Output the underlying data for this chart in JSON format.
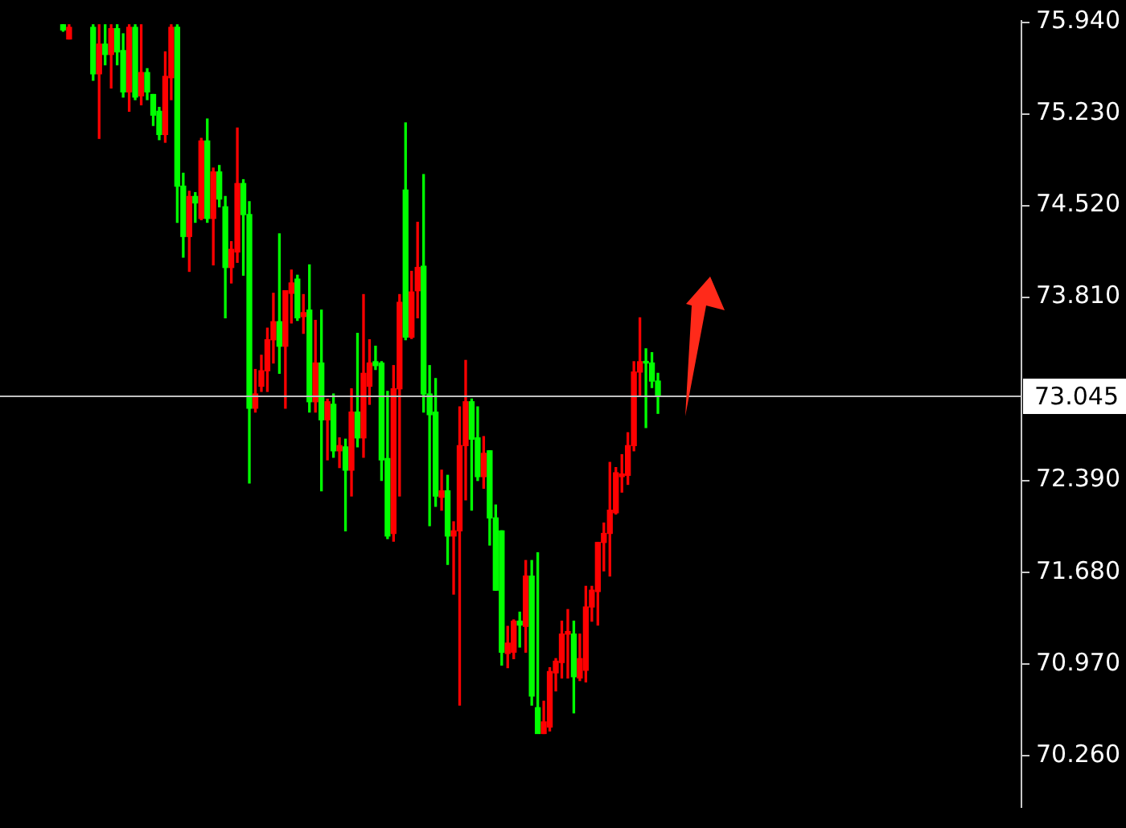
{
  "chart_data": {
    "type": "candlestick",
    "categories": [
      null,
      null,
      null,
      null,
      null,
      null,
      null,
      null,
      null,
      null,
      null,
      null,
      null,
      null,
      null,
      null,
      null,
      null,
      null,
      null,
      null,
      null,
      null,
      null,
      null,
      null,
      null,
      null,
      null,
      null,
      null,
      null,
      null,
      null,
      null,
      null,
      null,
      null,
      null,
      null,
      null,
      null,
      null,
      null,
      null,
      null,
      null,
      null,
      null,
      null,
      null,
      null,
      null,
      null,
      null,
      null,
      null,
      null,
      null,
      null,
      null,
      null,
      null,
      null,
      null,
      null,
      null,
      null,
      null,
      null,
      null,
      null,
      null,
      null,
      null,
      null,
      null,
      null,
      null,
      null,
      null,
      null,
      null,
      null,
      null,
      null,
      null,
      null,
      null,
      null,
      null,
      null,
      null,
      null,
      null,
      null,
      null,
      null,
      null,
      null,
      null,
      null,
      null,
      null,
      null,
      null,
      null,
      null,
      null,
      null,
      null,
      null,
      null,
      null,
      null,
      null,
      null,
      null,
      null,
      null,
      null,
      null,
      null,
      null,
      null,
      null,
      null,
      null,
      null,
      null,
      null,
      null,
      null,
      null,
      null,
      null,
      null,
      null,
      null,
      null,
      null,
      null,
      null,
      null,
      null,
      null,
      null,
      null,
      null,
      null,
      null,
      null,
      null,
      null,
      null,
      null,
      null,
      null,
      null,
      null,
      null,
      null,
      null,
      null,
      null,
      null,
      null,
      null,
      null,
      null
    ],
    "ohlc": [
      null,
      null,
      null,
      null,
      null,
      null,
      null,
      null,
      null,
      null,
      [
        75.92,
        75.92,
        75.87,
        75.88
      ],
      [
        75.81,
        75.92,
        75.81,
        75.9
      ],
      null,
      null,
      null,
      [
        75.9,
        75.92,
        75.49,
        75.54
      ],
      [
        75.54,
        75.92,
        75.04,
        75.77
      ],
      [
        75.77,
        75.92,
        75.61,
        75.69
      ],
      [
        75.69,
        75.92,
        75.43,
        75.89
      ],
      [
        75.89,
        75.92,
        75.61,
        75.71
      ],
      [
        75.72,
        75.85,
        75.36,
        75.4
      ],
      [
        75.4,
        75.92,
        75.25,
        75.9
      ],
      [
        75.9,
        75.92,
        75.34,
        75.36
      ],
      [
        75.37,
        75.92,
        75.3,
        75.55
      ],
      [
        75.55,
        75.58,
        75.34,
        75.4
      ],
      [
        75.38,
        75.38,
        75.14,
        75.22
      ],
      [
        75.25,
        75.28,
        75.03,
        75.07
      ],
      [
        75.07,
        75.71,
        75.01,
        75.52
      ],
      [
        75.51,
        75.92,
        75.34,
        75.9
      ],
      [
        75.9,
        75.92,
        74.39,
        74.67
      ],
      [
        74.67,
        74.77,
        74.12,
        74.28
      ],
      [
        74.28,
        74.63,
        74.01,
        74.59
      ],
      [
        74.59,
        74.62,
        74.39,
        74.54
      ],
      [
        74.42,
        75.04,
        74.41,
        75.02
      ],
      [
        75.02,
        75.19,
        74.39,
        74.42
      ],
      [
        74.42,
        74.81,
        74.06,
        74.78
      ],
      [
        74.78,
        74.83,
        74.51,
        74.57
      ],
      [
        74.51,
        74.59,
        73.65,
        74.04
      ],
      [
        74.04,
        74.24,
        73.92,
        74.18
      ],
      [
        74.16,
        75.12,
        74.08,
        74.69
      ],
      [
        74.69,
        74.72,
        73.98,
        74.45
      ],
      [
        74.45,
        74.55,
        72.37,
        72.95
      ],
      [
        72.95,
        73.25,
        72.92,
        73.06
      ],
      [
        73.12,
        73.36,
        73.08,
        73.24
      ],
      [
        73.24,
        73.57,
        73.08,
        73.48
      ],
      [
        73.48,
        73.84,
        73.3,
        73.62
      ],
      [
        73.62,
        74.3,
        73.22,
        73.43
      ],
      [
        73.43,
        73.86,
        72.95,
        73.86
      ],
      [
        73.84,
        74.02,
        73.61,
        73.92
      ],
      [
        73.95,
        73.98,
        73.63,
        73.65
      ],
      [
        73.66,
        73.83,
        73.53,
        73.69
      ],
      [
        73.71,
        74.06,
        72.92,
        73.0
      ],
      [
        73.0,
        73.63,
        72.92,
        73.3
      ],
      [
        73.3,
        73.71,
        72.31,
        72.86
      ],
      [
        72.86,
        73.02,
        72.55,
        73.0
      ],
      [
        72.98,
        73.06,
        72.57,
        72.62
      ],
      [
        72.62,
        72.72,
        72.49,
        72.66
      ],
      [
        72.65,
        72.71,
        72.0,
        72.47
      ],
      [
        72.47,
        73.1,
        72.27,
        72.92
      ],
      [
        72.92,
        73.53,
        72.65,
        72.72
      ],
      [
        72.72,
        73.83,
        72.57,
        73.22
      ],
      [
        73.12,
        73.48,
        72.98,
        73.3
      ],
      [
        73.31,
        73.43,
        73.25,
        73.28
      ],
      [
        73.3,
        73.31,
        72.39,
        72.55
      ],
      [
        72.56,
        73.08,
        71.94,
        71.96
      ],
      [
        71.98,
        73.28,
        71.92,
        73.1
      ],
      [
        73.1,
        73.83,
        72.27,
        73.77
      ],
      [
        74.64,
        75.16,
        73.48,
        73.5
      ],
      [
        73.5,
        74.01,
        73.49,
        73.85
      ],
      [
        73.86,
        74.39,
        73.65,
        74.04
      ],
      [
        74.05,
        74.76,
        72.92,
        73.06
      ],
      [
        73.06,
        73.28,
        72.04,
        72.9
      ],
      [
        72.92,
        73.18,
        72.19,
        72.27
      ],
      [
        72.26,
        72.47,
        72.16,
        72.31
      ],
      [
        72.31,
        72.43,
        71.74,
        71.96
      ],
      [
        71.96,
        72.07,
        71.51,
        72.0
      ],
      [
        72.0,
        72.96,
        70.65,
        72.66
      ],
      [
        72.66,
        73.32,
        72.24,
        73.0
      ],
      [
        73.0,
        73.02,
        72.16,
        72.71
      ],
      [
        72.72,
        72.96,
        72.39,
        72.42
      ],
      [
        72.42,
        72.73,
        72.33,
        72.6
      ],
      [
        72.62,
        72.62,
        71.89,
        72.1
      ],
      [
        72.1,
        72.2,
        71.54,
        71.54
      ],
      [
        72.0,
        72.0,
        70.96,
        71.06
      ],
      [
        71.05,
        71.26,
        70.94,
        71.13
      ],
      [
        71.06,
        71.31,
        71.01,
        71.3
      ],
      [
        71.3,
        71.37,
        71.1,
        71.27
      ],
      [
        71.26,
        71.77,
        71.06,
        71.65
      ],
      [
        71.65,
        71.77,
        70.65,
        70.72
      ],
      [
        70.63,
        71.83,
        70.43,
        70.43
      ],
      [
        70.43,
        70.68,
        70.43,
        70.52
      ],
      [
        70.48,
        70.94,
        70.45,
        70.91
      ],
      [
        70.9,
        71.01,
        70.76,
        70.99
      ],
      [
        70.98,
        71.3,
        70.86,
        71.2
      ],
      [
        71.2,
        71.39,
        70.86,
        71.22
      ],
      [
        71.2,
        71.3,
        70.59,
        70.87
      ],
      [
        70.86,
        71.2,
        70.84,
        71.01
      ],
      [
        70.92,
        71.57,
        70.83,
        71.41
      ],
      [
        71.41,
        71.57,
        71.3,
        71.54
      ],
      [
        71.53,
        71.91,
        71.27,
        71.91
      ],
      [
        71.91,
        72.06,
        71.69,
        71.98
      ],
      [
        71.98,
        72.53,
        71.65,
        72.16
      ],
      [
        72.14,
        72.49,
        72.13,
        72.45
      ],
      [
        72.42,
        72.59,
        72.3,
        72.44
      ],
      [
        72.43,
        72.76,
        72.36,
        72.66
      ],
      [
        72.66,
        73.31,
        72.62,
        73.23
      ],
      [
        73.23,
        73.65,
        73.04,
        73.31
      ],
      [
        73.31,
        73.41,
        72.8,
        73.3
      ],
      [
        73.3,
        73.38,
        73.11,
        73.16
      ],
      [
        73.16,
        73.22,
        72.91,
        73.05
      ],
      null,
      null,
      null,
      null,
      null,
      null,
      null,
      null,
      null,
      null,
      null,
      null,
      null,
      null,
      null,
      null,
      null,
      null,
      null,
      null,
      null,
      null,
      null,
      null,
      null,
      null,
      null,
      null,
      null,
      null,
      null,
      null,
      null,
      null,
      null,
      null,
      null,
      null,
      null,
      null,
      null,
      null,
      null,
      null,
      null,
      null,
      null,
      null,
      null,
      null,
      null,
      null,
      null,
      null,
      null,
      null,
      null,
      null,
      null,
      null
    ],
    "colors": [
      null,
      null,
      null,
      null,
      null,
      null,
      null,
      null,
      null,
      null,
      "#00ff00",
      "#ff0000",
      null,
      null,
      null,
      "#00ff00",
      "#ff0000",
      "#00ff00",
      "#ff0000",
      "#00ff00",
      "#00ff00",
      "#ff0000",
      "#00ff00",
      "#ff0000",
      "#00ff00",
      "#00ff00",
      "#00ff00",
      "#ff0000",
      "#ff0000",
      "#00ff00",
      "#00ff00",
      "#ff0000",
      "#00ff00",
      "#ff0000",
      "#00ff00",
      "#ff0000",
      "#00ff00",
      "#00ff00",
      "#ff0000",
      "#ff0000",
      "#00ff00",
      "#00ff00",
      "#ff0000",
      "#ff0000",
      "#ff0000",
      "#ff0000",
      "#00ff00",
      "#ff0000",
      "#ff0000",
      "#00ff00",
      "#ff0000",
      "#00ff00",
      "#ff0000",
      "#00ff00",
      "#ff0000",
      "#00ff00",
      "#ff0000",
      "#00ff00",
      "#ff0000",
      "#00ff00",
      "#ff0000",
      "#ff0000",
      "#00ff00",
      "#00ff00",
      "#00ff00",
      "#ff0000",
      "#ff0000",
      "#00ff00",
      "#ff0000",
      "#ff0000",
      "#00ff00",
      "#00ff00",
      "#00ff00",
      "#ff0000",
      "#00ff00",
      "#ff0000",
      "#ff0000",
      "#ff0000",
      "#00ff00",
      "#00ff00",
      "#ff0000",
      "#00ff00",
      "#00ff00",
      "#00ff00",
      "#ff0000",
      "#ff0000",
      "#00ff00",
      "#ff0000",
      "#00ff00",
      "#00ff00",
      "#ff0000",
      "#ff0000",
      "#ff0000",
      "#ff0000",
      "#ff0000",
      "#00ff00",
      "#ff0000",
      "#ff0000",
      "#ff0000",
      "#ff0000",
      "#ff0000",
      "#ff0000",
      "#ff0000",
      "#ff0000",
      "#ff0000",
      "#ff0000",
      "#ff0000",
      "#00ff00",
      "#00ff00",
      "#00ff00",
      null,
      null,
      null,
      null,
      null,
      null,
      null,
      null,
      null,
      null,
      null,
      null,
      null,
      null,
      null,
      null,
      null,
      null,
      null,
      null,
      null,
      null,
      null,
      null,
      null,
      null,
      null,
      null,
      null,
      null,
      null,
      null,
      null,
      null,
      null,
      null,
      null,
      null,
      null,
      null,
      null,
      null,
      null,
      null,
      null,
      null,
      null,
      null,
      null,
      null,
      null,
      null,
      null,
      null,
      null,
      null,
      null,
      null,
      null,
      null
    ],
    "ylim": [
      69.86,
      75.95
    ],
    "yticks": [
      {
        "value": 70.26,
        "label": "70.260"
      },
      {
        "value": 70.97,
        "label": "70.970"
      },
      {
        "value": 71.68,
        "label": "71.680"
      },
      {
        "value": 72.39,
        "label": "72.390"
      },
      {
        "value": 73.81,
        "label": "73.810"
      },
      {
        "value": 74.52,
        "label": "74.520"
      },
      {
        "value": 75.23,
        "label": "75.230"
      },
      {
        "value": 75.94,
        "label": "75.940"
      }
    ],
    "tick_labels": "y",
    "ref_lines": [
      {
        "axis": "y",
        "value": 73.045,
        "label": "73.045",
        "color": "#c0c0c0"
      }
    ]
  }
}
